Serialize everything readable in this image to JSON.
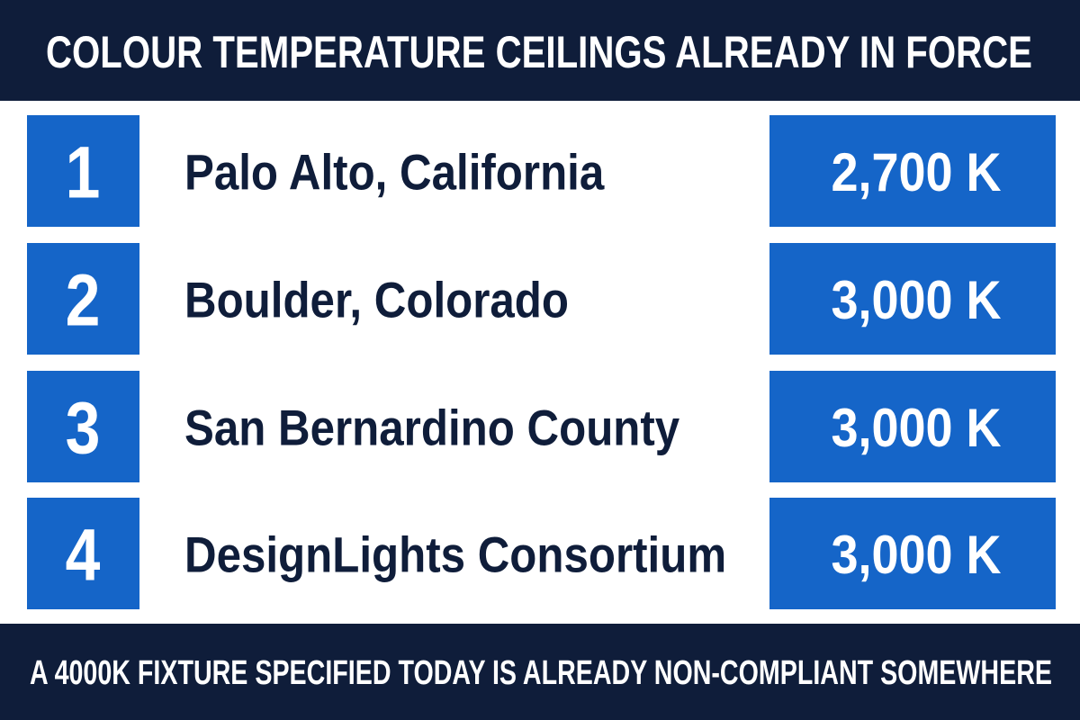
{
  "header": {
    "title": "COLOUR TEMPERATURE CEILINGS ALREADY IN FORCE"
  },
  "rows": [
    {
      "rank": "1",
      "name": "Palo Alto, California",
      "value": "2,700 K"
    },
    {
      "rank": "2",
      "name": "Boulder, Colorado",
      "value": "3,000 K"
    },
    {
      "rank": "3",
      "name": "San Bernardino County",
      "value": "3,000 K"
    },
    {
      "rank": "4",
      "name": "DesignLights Consortium",
      "value": "3,000 K"
    }
  ],
  "footer": {
    "text": "A 4000K FIXTURE SPECIFIED TODAY IS ALREADY NON-COMPLIANT SOMEWHERE"
  }
}
